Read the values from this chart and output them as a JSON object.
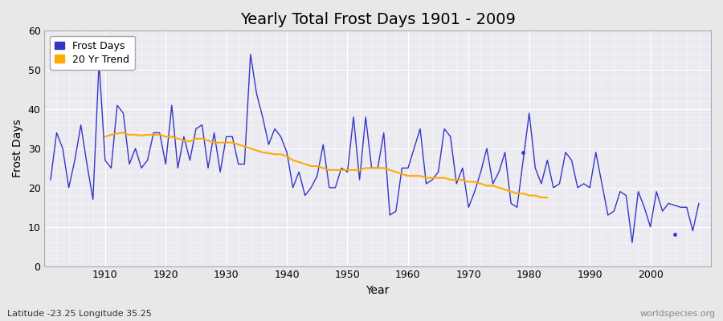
{
  "title": "Yearly Total Frost Days 1901 - 2009",
  "xlabel": "Year",
  "ylabel": "Frost Days",
  "subtitle": "Latitude -23.25 Longitude 35.25",
  "watermark": "worldspecies.org",
  "frost_days_years": [
    1901,
    1902,
    1903,
    1904,
    1905,
    1906,
    1907,
    1908,
    1909,
    1910,
    1911,
    1912,
    1913,
    1914,
    1915,
    1916,
    1917,
    1918,
    1919,
    1920,
    1921,
    1922,
    1923,
    1924,
    1925,
    1926,
    1927,
    1928,
    1929,
    1930,
    1931,
    1932,
    1933,
    1934,
    1935,
    1936,
    1937,
    1938,
    1939,
    1940,
    1941,
    1942,
    1943,
    1944,
    1945,
    1946,
    1947,
    1948,
    1949,
    1950,
    1951,
    1952,
    1953,
    1954,
    1955,
    1956,
    1957,
    1958,
    1959,
    1960,
    1961,
    1962,
    1963,
    1964,
    1965,
    1966,
    1967,
    1968,
    1969,
    1970,
    1971,
    1972,
    1973,
    1974,
    1975,
    1976,
    1977,
    1978,
    1980,
    1981,
    1982,
    1983,
    1984,
    1985,
    1986,
    1987,
    1988,
    1989,
    1990,
    1991,
    1992,
    1993,
    1994,
    1995,
    1996,
    1997,
    1998,
    1999,
    2000,
    2001,
    2002,
    2003,
    2005,
    2006,
    2007,
    2008
  ],
  "frost_days_values": [
    22,
    34,
    30,
    20,
    27,
    36,
    26,
    17,
    52,
    27,
    25,
    41,
    39,
    26,
    30,
    25,
    27,
    34,
    34,
    26,
    41,
    25,
    33,
    27,
    35,
    36,
    25,
    34,
    24,
    33,
    33,
    26,
    26,
    54,
    44,
    38,
    31,
    35,
    33,
    29,
    20,
    24,
    18,
    20,
    23,
    31,
    20,
    20,
    25,
    24,
    38,
    22,
    38,
    25,
    25,
    34,
    13,
    14,
    25,
    25,
    30,
    35,
    21,
    22,
    24,
    35,
    33,
    21,
    25,
    15,
    19,
    24,
    30,
    21,
    24,
    29,
    16,
    15,
    39,
    25,
    21,
    27,
    20,
    21,
    29,
    27,
    20,
    21,
    20,
    29,
    21,
    13,
    14,
    19,
    18,
    6,
    19,
    15,
    10,
    19,
    14,
    16,
    15,
    15,
    9,
    16
  ],
  "isolated_points_years": [
    1979,
    2004
  ],
  "isolated_points_values": [
    29,
    8
  ],
  "trend_years": [
    1910,
    1911,
    1912,
    1913,
    1914,
    1915,
    1916,
    1917,
    1918,
    1919,
    1920,
    1921,
    1922,
    1923,
    1924,
    1925,
    1926,
    1927,
    1928,
    1929,
    1930,
    1931,
    1932,
    1933,
    1934,
    1935,
    1936,
    1937,
    1938,
    1939,
    1940,
    1941,
    1942,
    1943,
    1944,
    1945,
    1946,
    1947,
    1948,
    1949,
    1950,
    1951,
    1952,
    1953,
    1954,
    1955,
    1956,
    1957,
    1958,
    1959,
    1960,
    1961,
    1962,
    1963,
    1964,
    1965,
    1966,
    1967,
    1968,
    1969,
    1970,
    1971,
    1972,
    1973,
    1974,
    1975,
    1976,
    1977,
    1978,
    1979,
    1980,
    1981,
    1982,
    1983
  ],
  "trend_values": [
    33.0,
    33.5,
    33.8,
    34.0,
    33.5,
    33.5,
    33.3,
    33.5,
    33.5,
    33.5,
    33.0,
    33.0,
    32.5,
    32.0,
    31.8,
    32.5,
    32.5,
    32.0,
    31.5,
    31.5,
    31.5,
    31.5,
    31.0,
    30.5,
    30.0,
    29.5,
    29.0,
    28.8,
    28.5,
    28.5,
    28.0,
    27.0,
    26.5,
    26.0,
    25.5,
    25.5,
    25.0,
    24.5,
    24.5,
    24.5,
    24.5,
    24.5,
    24.5,
    25.0,
    25.0,
    25.0,
    25.0,
    24.5,
    24.0,
    23.5,
    23.0,
    23.0,
    23.0,
    22.5,
    22.5,
    22.5,
    22.5,
    22.0,
    22.0,
    22.0,
    21.5,
    21.5,
    21.0,
    20.5,
    20.5,
    20.0,
    19.5,
    19.0,
    18.5,
    18.5,
    18.0,
    18.0,
    17.5,
    17.5
  ],
  "ylim": [
    0,
    60
  ],
  "yticks": [
    0,
    10,
    20,
    30,
    40,
    50,
    60
  ],
  "xlim": [
    1900,
    2010
  ],
  "xticks": [
    1910,
    1920,
    1930,
    1940,
    1950,
    1960,
    1970,
    1980,
    1990,
    2000
  ],
  "fig_bg_color": "#e8e8e8",
  "plot_bg_color": "#eaeaf0",
  "line_color": "#3535c8",
  "trend_color": "#ffaa00",
  "subtitle_color": "#333333",
  "watermark_color": "#888888",
  "title_fontsize": 14,
  "axis_label_fontsize": 10,
  "tick_fontsize": 9,
  "legend_fontsize": 9
}
